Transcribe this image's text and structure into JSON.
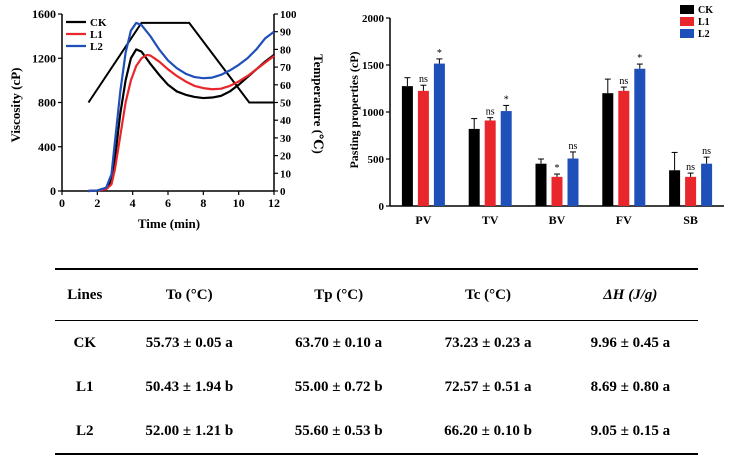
{
  "rva": {
    "y_left_label": "Viscosity (cP)",
    "y_right_label": "Temperature (℃)",
    "x_label": "Time (min)",
    "x_ticks": [
      "0",
      "2",
      "4",
      "6",
      "8",
      "10",
      "12"
    ],
    "y_left_ticks": [
      "0",
      "400",
      "800",
      "1200",
      "1600"
    ],
    "y_right_ticks": [
      "0",
      "10",
      "20",
      "30",
      "40",
      "50",
      "60",
      "70",
      "80",
      "90",
      "100"
    ],
    "legend": [
      "CK",
      "L1",
      "L2"
    ]
  },
  "pasting": {
    "y_label": "Pasting properties (cP)",
    "categories": [
      "PV",
      "TV",
      "BV",
      "FV",
      "SB"
    ],
    "y_ticks": [
      "0",
      "500",
      "1000",
      "1500",
      "2000"
    ],
    "legend": [
      "CK",
      "L1",
      "L2"
    ]
  },
  "table": {
    "headers": [
      "Lines",
      "To (°C)",
      "Tp (°C)",
      "Tc (°C)",
      "ΔH (J/g)"
    ],
    "rows": [
      [
        "CK",
        "55.73 ± 0.05 a",
        "63.70 ± 0.10 a",
        "73.23 ± 0.23 a",
        "9.96 ± 0.45 a"
      ],
      [
        "L1",
        "50.43 ± 1.94 b",
        "55.00 ± 0.72 b",
        "72.57 ± 0.51 a",
        "8.69 ± 0.80 a"
      ],
      [
        "L2",
        "52.00 ± 1.21 b",
        "55.60 ± 0.53 b",
        "66.20 ± 0.10 b",
        "9.05 ± 0.15 a"
      ]
    ]
  },
  "colors": {
    "CK": "#000000",
    "L1": "#e8262b",
    "L2": "#1f4fb8"
  },
  "chart_data": [
    {
      "type": "line",
      "xlabel": "Time (min)",
      "ylabel": "Viscosity (cP)",
      "y2label": "Temperature (℃)",
      "xlim": [
        0,
        12
      ],
      "ylim": [
        0,
        1600
      ],
      "y2lim": [
        0,
        100
      ],
      "grid": false,
      "legend_position": "top-left",
      "temperature_profile": {
        "x": [
          1.5,
          4.5,
          7.2,
          10.6,
          12
        ],
        "y": [
          50,
          95,
          95,
          50,
          50
        ]
      },
      "series": [
        {
          "name": "CK",
          "x": [
            1.5,
            2.0,
            2.5,
            2.8,
            3.0,
            3.3,
            3.6,
            3.9,
            4.2,
            4.5,
            5.0,
            5.5,
            6.0,
            6.5,
            7.0,
            7.5,
            8.0,
            8.5,
            9.0,
            9.5,
            10.0,
            10.5,
            11.0,
            11.5,
            12.0
          ],
          "y": [
            0,
            5,
            20,
            100,
            300,
            700,
            1000,
            1200,
            1280,
            1260,
            1150,
            1050,
            960,
            900,
            870,
            850,
            840,
            845,
            860,
            900,
            960,
            1030,
            1100,
            1170,
            1230
          ]
        },
        {
          "name": "L1",
          "x": [
            1.5,
            2.0,
            2.5,
            2.8,
            3.0,
            3.3,
            3.6,
            3.9,
            4.2,
            4.5,
            4.8,
            5.0,
            5.5,
            6.0,
            6.5,
            7.0,
            7.5,
            8.0,
            8.5,
            9.0,
            9.5,
            10.0,
            10.5,
            11.0,
            11.5,
            12.0
          ],
          "y": [
            0,
            5,
            15,
            60,
            200,
            500,
            800,
            1000,
            1130,
            1200,
            1230,
            1225,
            1170,
            1100,
            1040,
            990,
            950,
            930,
            920,
            925,
            950,
            990,
            1040,
            1100,
            1160,
            1220
          ]
        },
        {
          "name": "L2",
          "x": [
            1.5,
            2.0,
            2.5,
            2.8,
            3.0,
            3.3,
            3.6,
            3.9,
            4.2,
            4.5,
            5.0,
            5.5,
            6.0,
            6.5,
            7.0,
            7.5,
            8.0,
            8.5,
            9.0,
            9.5,
            10.0,
            10.5,
            11.0,
            11.5,
            12.0
          ],
          "y": [
            0,
            5,
            30,
            150,
            450,
            900,
            1250,
            1450,
            1520,
            1500,
            1400,
            1280,
            1180,
            1110,
            1060,
            1030,
            1020,
            1025,
            1050,
            1090,
            1140,
            1200,
            1280,
            1380,
            1440
          ]
        }
      ]
    },
    {
      "type": "bar",
      "ylabel": "Pasting properties (cP)",
      "categories": [
        "PV",
        "TV",
        "BV",
        "FV",
        "SB"
      ],
      "ylim": [
        0,
        2000
      ],
      "grid": false,
      "legend_position": "top-right",
      "series": [
        {
          "name": "CK",
          "values": [
            1275,
            820,
            450,
            1200,
            380
          ],
          "errors": [
            90,
            110,
            50,
            150,
            190
          ],
          "sig": [
            "",
            "",
            "",
            "",
            ""
          ]
        },
        {
          "name": "L1",
          "values": [
            1225,
            910,
            310,
            1225,
            310
          ],
          "errors": [
            60,
            30,
            30,
            40,
            40
          ],
          "sig": [
            "ns",
            "ns",
            "*",
            "ns",
            "ns"
          ]
        },
        {
          "name": "L2",
          "values": [
            1515,
            1010,
            505,
            1460,
            450
          ],
          "errors": [
            50,
            60,
            70,
            50,
            70
          ],
          "sig": [
            "*",
            "*",
            "ns",
            "*",
            "ns"
          ]
        }
      ]
    }
  ]
}
